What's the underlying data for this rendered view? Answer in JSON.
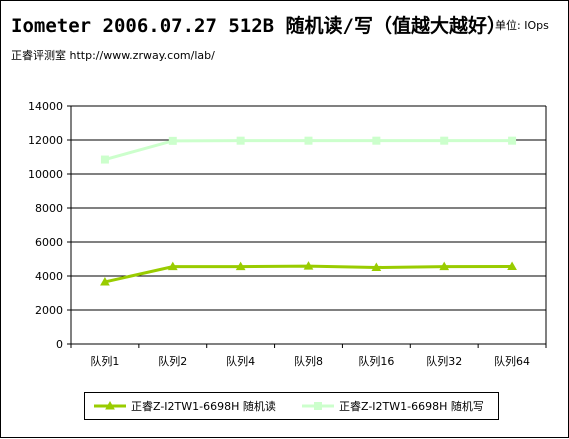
{
  "header": {
    "title": "Iometer 2006.07.27 512B 随机读/写（值越大越好）",
    "unit": "单位: IOps",
    "source": "正睿评测室 http://www.zrway.com/lab/"
  },
  "chart_data": {
    "type": "line",
    "categories": [
      "队列1",
      "队列2",
      "队列4",
      "队列8",
      "队列16",
      "队列32",
      "队列64"
    ],
    "ylim": [
      0,
      14000
    ],
    "yticks": [
      0,
      2000,
      4000,
      6000,
      8000,
      10000,
      12000,
      14000
    ],
    "grid": true,
    "legend_position": "bottom",
    "series": [
      {
        "name": "正睿Z-I2TW1-6698H 随机读",
        "color": "#99cc00",
        "marker": "triangle",
        "values": [
          3650,
          4550,
          4550,
          4580,
          4500,
          4550,
          4560
        ]
      },
      {
        "name": "正睿Z-I2TW1-6698H 随机写",
        "color": "#ccffcc",
        "marker": "square",
        "values": [
          10850,
          11950,
          11960,
          11960,
          11960,
          11960,
          11960
        ]
      }
    ]
  }
}
